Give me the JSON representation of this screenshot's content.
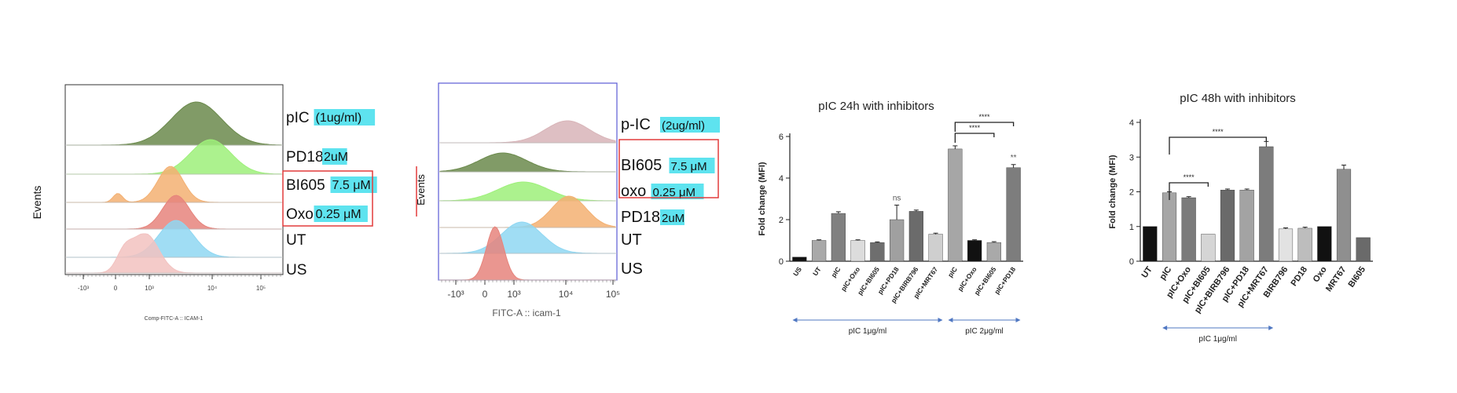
{
  "colors": {
    "green_dark": "#6b8a4c",
    "green_light": "#9ef07a",
    "orange": "#f3b072",
    "red": "#e6847c",
    "blue": "#8fd7f2",
    "pink": "#f2c2c0",
    "mauve": "#d8b4b8",
    "highlight": "#5ee3ef",
    "annotation_box": "#e23c3c",
    "arrow": "#4f77c2"
  },
  "chart_data": [
    {
      "type": "histogram",
      "panel": "A",
      "ylabel": "Events",
      "xlabel": "Comp-FITC-A :: ICAM-1",
      "x_ticks": [
        "-10³",
        "0",
        "10³",
        "10⁴",
        "10⁵"
      ],
      "series": [
        {
          "name": "pIC",
          "dose": "(1ug/ml)",
          "color": "green_dark"
        },
        {
          "name": "PD18",
          "dose": "2uM",
          "color": "green_light"
        },
        {
          "name": "BI605",
          "dose": "7.5 μM",
          "color": "orange"
        },
        {
          "name": "Oxo",
          "dose": "0.25 μM",
          "color": "red"
        },
        {
          "name": "UT",
          "dose": "",
          "color": "blue"
        },
        {
          "name": "US",
          "dose": "",
          "color": "pink"
        }
      ]
    },
    {
      "type": "histogram",
      "panel": "B",
      "ylabel": "Events",
      "xlabel": "FITC-A :: icam-1",
      "x_ticks": [
        "-10³",
        "0",
        "10³",
        "10⁴",
        "10⁵"
      ],
      "series": [
        {
          "name": "p-IC",
          "dose": "(2ug/ml)",
          "color": "mauve"
        },
        {
          "name": "BI605",
          "dose": "7.5 μM",
          "color": "green_dark"
        },
        {
          "name": "oxo",
          "dose": "0.25 μM",
          "color": "green_light"
        },
        {
          "name": "PD18",
          "dose": "2uM",
          "color": "orange"
        },
        {
          "name": "UT",
          "dose": "",
          "color": "blue"
        },
        {
          "name": "US",
          "dose": "",
          "color": "red"
        }
      ]
    },
    {
      "type": "bar",
      "panel": "C",
      "title": "pIC 24h with inhibitors",
      "ylabel": "Fold change (MFI)",
      "ylim": [
        0,
        6
      ],
      "yticks": [
        0,
        2,
        4,
        6
      ],
      "categories": [
        "US",
        "UT",
        "pIC",
        "pIC+Oxo",
        "pIC+BI605",
        "pIC+PD18",
        "pIC+BIRB796",
        "pIC+MRT67",
        "pIC",
        "pIC+Oxo",
        "pIC+BI605",
        "pIC+PD18"
      ],
      "values": [
        0.2,
        1.0,
        2.3,
        1.0,
        0.9,
        2.0,
        2.4,
        1.3,
        5.4,
        1.0,
        0.9,
        4.5
      ],
      "errors": [
        0.02,
        0.03,
        0.08,
        0.03,
        0.03,
        0.7,
        0.06,
        0.05,
        0.15,
        0.03,
        0.04,
        0.15
      ],
      "bar_colors": [
        "#111111",
        "#a9a9a9",
        "#808080",
        "#dcdcdc",
        "#6e6e6e",
        "#a0a0a0",
        "#6b6b6b",
        "#cfcfcf",
        "#a6a6a6",
        "#111111",
        "#a9a9a9",
        "#7d7d7d"
      ],
      "significance": [
        {
          "text": "ns",
          "bar": 5
        },
        {
          "text": "**",
          "bar": 11
        },
        {
          "text": "****",
          "from": 8,
          "to": 10
        },
        {
          "text": "****",
          "from": 8,
          "to": 11
        }
      ],
      "groups": [
        {
          "label": "pIC 1μg/ml",
          "from": 0,
          "to": 7
        },
        {
          "label": "pIC 2μg/ml",
          "from": 8,
          "to": 11
        }
      ]
    },
    {
      "type": "bar",
      "panel": "D",
      "title": "pIC 48h with inhibitors",
      "ylabel": "Fold change (MFI)",
      "ylim": [
        0,
        4
      ],
      "yticks": [
        0,
        1,
        2,
        3,
        4
      ],
      "categories": [
        "UT",
        "pIC",
        "pIC+Oxo",
        "pIC+BI605",
        "pIC+BIRB796",
        "pIC+PD18",
        "pIC+MRT67",
        "BIRB796",
        "PD18",
        "Oxo",
        "MRT67",
        "BI605"
      ],
      "values": [
        1.0,
        1.97,
        1.83,
        0.78,
        2.05,
        2.05,
        3.3,
        0.93,
        0.95,
        1.0,
        2.65,
        0.68
      ],
      "errors": [
        0.02,
        0.03,
        0.03,
        0.02,
        0.03,
        0.03,
        0.15,
        0.03,
        0.03,
        0.02,
        0.12,
        0.02
      ],
      "bar_colors": [
        "#111111",
        "#a6a6a6",
        "#7b7b7b",
        "#d5d5d5",
        "#6a6a6a",
        "#a3a3a3",
        "#7c7c7c",
        "#e2e2e2",
        "#bdbdbd",
        "#111111",
        "#8f8f8f",
        "#6a6a6a"
      ],
      "significance": [
        {
          "text": "****",
          "from": 1,
          "to": 3
        },
        {
          "text": "****",
          "from": 1,
          "to": 6
        }
      ],
      "groups": [
        {
          "label": "pIC 1μg/ml",
          "from": 1,
          "to": 6
        }
      ]
    }
  ]
}
